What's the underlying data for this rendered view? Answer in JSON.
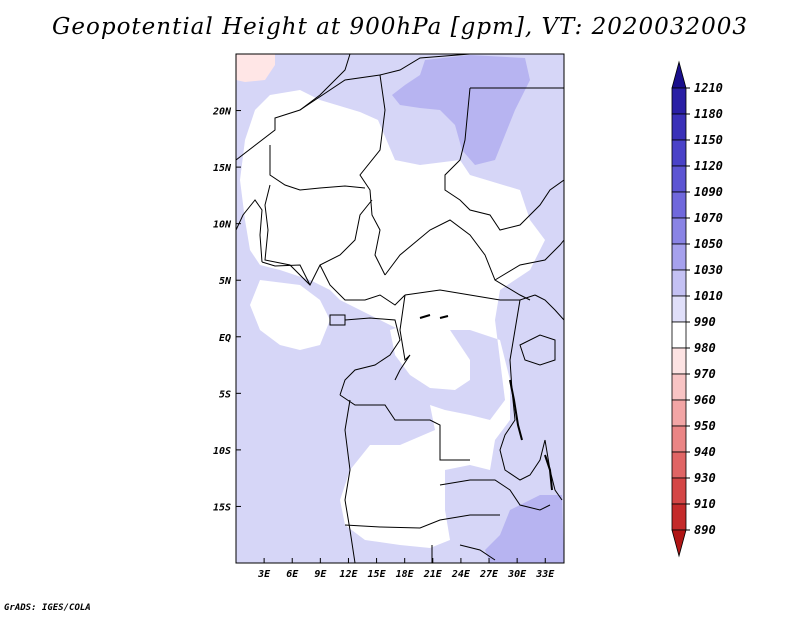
{
  "chart_data": {
    "type": "heatmap",
    "title": "Geopotential Height at 900hPa [gpm], VT: 2020032003",
    "xlabel": "",
    "ylabel": "",
    "x_ticks": [
      "3E",
      "6E",
      "9E",
      "12E",
      "15E",
      "18E",
      "21E",
      "24E",
      "27E",
      "30E",
      "33E"
    ],
    "x_tick_values": [
      3,
      6,
      9,
      12,
      15,
      18,
      21,
      24,
      27,
      30,
      33
    ],
    "y_ticks": [
      "20N",
      "15N",
      "10N",
      "5N",
      "EQ",
      "5S",
      "10S",
      "15S"
    ],
    "y_tick_values": [
      20,
      15,
      10,
      5,
      0,
      -5,
      -10,
      -15
    ],
    "xlim": [
      0.0,
      35.0
    ],
    "ylim": [
      -20.0,
      25.0
    ],
    "colorbar": {
      "levels": [
        "1210",
        "1180",
        "1150",
        "1120",
        "1090",
        "1070",
        "1050",
        "1030",
        "1010",
        "990",
        "980",
        "970",
        "960",
        "950",
        "940",
        "930",
        "910",
        "890"
      ],
      "colors": [
        "#1a0f8c",
        "#2a1fa5",
        "#3a30b8",
        "#4a42c8",
        "#5d55d3",
        "#7068dc",
        "#8a84e5",
        "#a6a1ed",
        "#c4c1f3",
        "#e0dff9",
        "#ffffff",
        "#fde3e3",
        "#f8c4c4",
        "#f2a5a5",
        "#ea8585",
        "#e06565",
        "#d44646",
        "#c42a2a",
        "#b01515"
      ]
    },
    "field_regions": [
      {
        "level": "1030-1050",
        "lon": [
          19,
          27
        ],
        "lat": [
          20,
          25
        ]
      },
      {
        "level": "1030-1050",
        "lon": [
          29,
          35
        ],
        "lat": [
          -20,
          -15
        ]
      },
      {
        "level": "1010-1030",
        "lon": [
          0,
          10
        ],
        "lat": [
          -7,
          6
        ]
      },
      {
        "level": "1010-1030",
        "lon": [
          20,
          35
        ],
        "lat": [
          -20,
          25
        ]
      },
      {
        "level": "990-1010",
        "lon": [
          8,
          20
        ],
        "lat": [
          -18,
          20
        ]
      },
      {
        "level": "980-990",
        "lon": [
          0,
          3
        ],
        "lat": [
          23,
          25
        ]
      }
    ]
  },
  "footer": {
    "credit": "GrADS: IGES/COLA"
  }
}
